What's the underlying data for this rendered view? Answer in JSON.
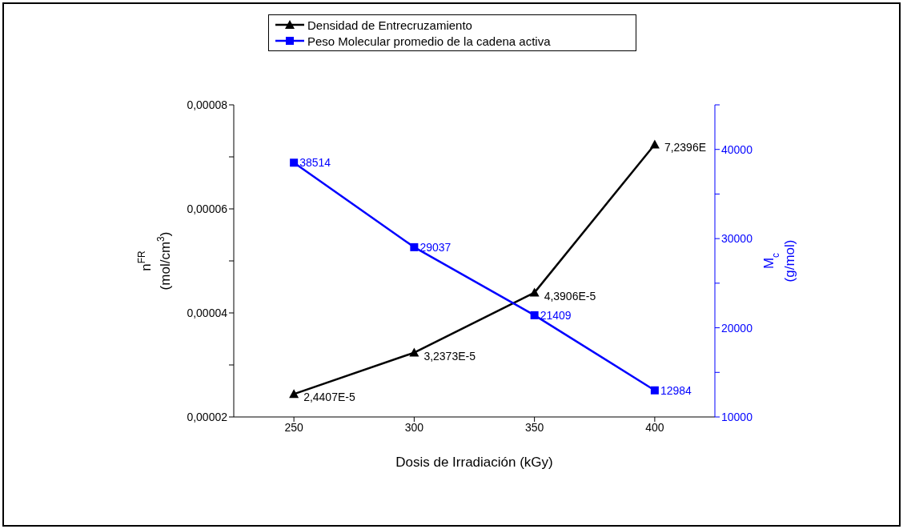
{
  "chart_data": {
    "type": "line",
    "xlabel": "Dosis de Irradiación (kGy)",
    "ylabel": "n$^{FR}$\n(mol/cm$^{3}$)",
    "y2label": "M$_{c}$\n(g/mol)",
    "x": [
      250,
      300,
      350,
      400
    ],
    "xlim": [
      225,
      425
    ],
    "xticks": [
      250,
      300,
      350,
      400
    ],
    "ylim": [
      2e-05,
      8e-05
    ],
    "yticks": [
      {
        "value": 2e-05,
        "label": "0,00002"
      },
      {
        "value": 3e-05,
        "label": null
      },
      {
        "value": 4e-05,
        "label": "0,00004"
      },
      {
        "value": 5e-05,
        "label": null
      },
      {
        "value": 6e-05,
        "label": "0,00006"
      },
      {
        "value": 7e-05,
        "label": null
      },
      {
        "value": 8e-05,
        "label": "0,00008"
      }
    ],
    "y2lim": [
      10000,
      45000
    ],
    "y2ticks": [
      10000,
      {
        "value": 15000,
        "label": null
      },
      20000,
      {
        "value": 25000,
        "label": null
      },
      30000,
      {
        "value": 35000,
        "label": null
      },
      40000,
      {
        "value": 45000,
        "label": null
      }
    ],
    "series": [
      {
        "name": "Densidad de Entrecruzamiento",
        "color": "#000000",
        "marker": "triangle",
        "values": [
          2.4407e-05,
          3.2373e-05,
          4.3906e-05,
          7.2396e-05
        ],
        "value_labels": [
          "2,4407E-5",
          "3,2373E-5",
          "4,3906E-5",
          "7,2396E"
        ]
      },
      {
        "name": "Peso Molecular promedio de la cadena activa",
        "color": "#0000ff",
        "marker": "square",
        "axis": "y2",
        "values": [
          38514,
          29037,
          21409,
          12984
        ],
        "value_labels": [
          "38514",
          "29037",
          "21409",
          "12984"
        ]
      }
    ],
    "legend": "top",
    "grid": false,
    "line_style": "solid"
  }
}
